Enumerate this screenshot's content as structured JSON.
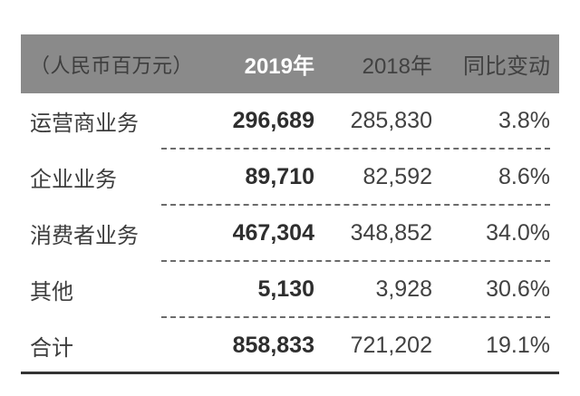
{
  "table": {
    "header": {
      "unit": "（人民币百万元）",
      "y2019": "2019年",
      "y2018": "2018年",
      "change": "同比变动"
    },
    "rows": [
      {
        "label": "运营商业务",
        "y2019": "296,689",
        "y2018": "285,830",
        "change": "3.8%"
      },
      {
        "label": "企业业务",
        "y2019": "89,710",
        "y2018": "82,592",
        "change": "8.6%"
      },
      {
        "label": "消费者业务",
        "y2019": "467,304",
        "y2018": "348,852",
        "change": "34.0%"
      },
      {
        "label": "其他",
        "y2019": "5,130",
        "y2018": "3,928",
        "change": "30.6%"
      },
      {
        "label": "合计",
        "y2019": "858,833",
        "y2018": "721,202",
        "change": "19.1%"
      }
    ]
  },
  "colors": {
    "header_bg": "#8a8a8a",
    "header_text": "#ffffff",
    "label_text": "#3d3d3d",
    "number_text": "#414141",
    "bold_number_text": "#2e2e2e",
    "dashed_divider": "#6b6b6b",
    "bottom_rule": "#333333",
    "background": "#ffffff"
  },
  "chart_data": {
    "type": "table",
    "unit": "人民币百万元",
    "columns": [
      "",
      "2019年",
      "2018年",
      "同比变动"
    ],
    "rows": [
      [
        "运营商业务",
        296689,
        285830,
        "3.8%"
      ],
      [
        "企业业务",
        89710,
        82592,
        "8.6%"
      ],
      [
        "消费者业务",
        467304,
        348852,
        "34.0%"
      ],
      [
        "其他",
        5130,
        3928,
        "30.6%"
      ],
      [
        "合计",
        858833,
        721202,
        "19.1%"
      ]
    ]
  }
}
